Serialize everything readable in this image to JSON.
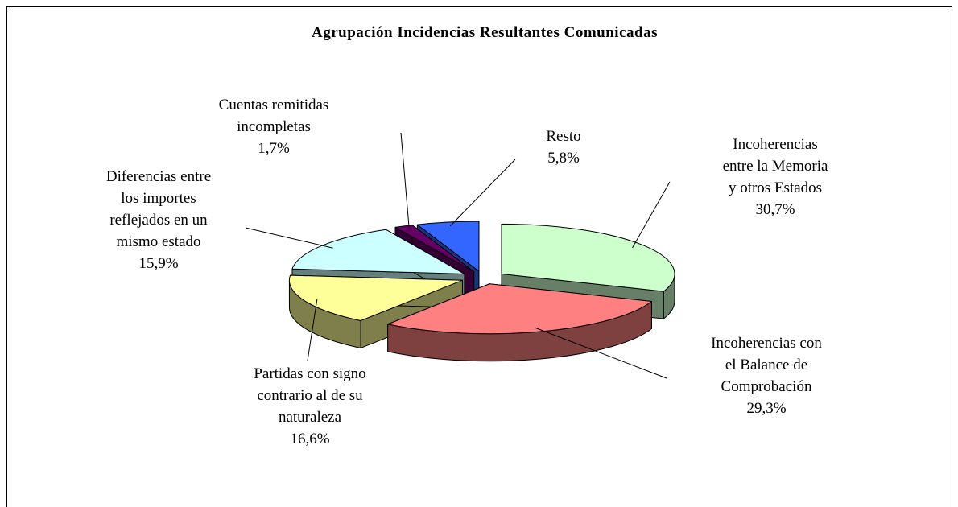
{
  "chart_data": {
    "type": "pie3d",
    "title": "Agrupación Incidencias Resultantes Comunicadas",
    "categories": [
      "Incoherencias\nentre la Memoria\ny otros Estados",
      "Incoherencias con\nel Balance de\nComprobación",
      "Partidas con signo\ncontrario al de su\nnaturaleza",
      "Diferencias entre\nlos importes\nreflejados en un\nmismo estado",
      "Cuentas remitidas\nincompletas",
      "Resto"
    ],
    "values": [
      30.7,
      29.3,
      16.6,
      15.9,
      1.7,
      5.8
    ],
    "value_labels": [
      "30,7%",
      "29,3%",
      "16,6%",
      "15,9%",
      "1,7%",
      "5,8%"
    ],
    "colors": [
      "#ccffcc",
      "#ff8080",
      "#ffff99",
      "#ccffff",
      "#660066",
      "#3366ff"
    ]
  }
}
